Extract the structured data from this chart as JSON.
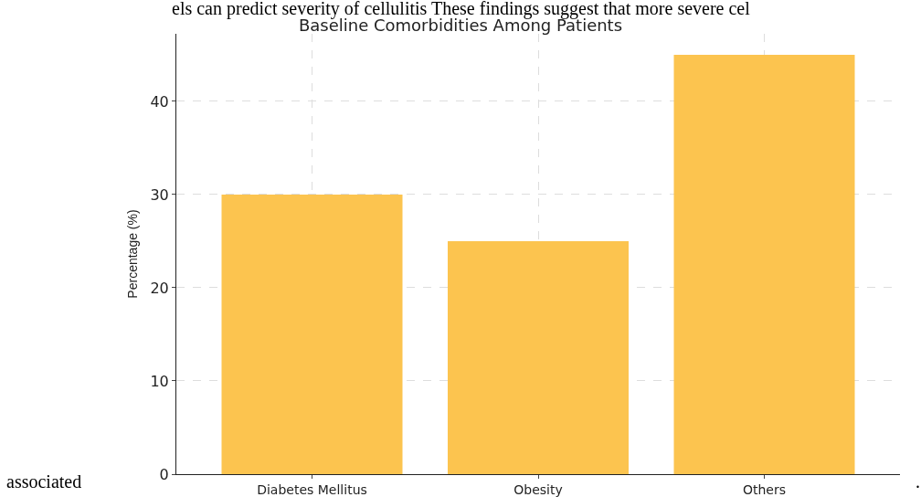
{
  "chart_data": {
    "type": "bar",
    "title": "Baseline Comorbidities Among Patients",
    "ylabel": "Percentage (%)",
    "categories": [
      "Diabetes Mellitus",
      "Obesity",
      "Others"
    ],
    "values": [
      30,
      25,
      45
    ],
    "color": "#fcc44f",
    "ylim": [
      0,
      47.25
    ],
    "yticks": [
      0,
      10,
      20,
      30,
      40
    ],
    "grid": true,
    "annotations": [
      "els can predict severity of cellulitis These findings suggest that more severe cel",
      "associated",
      "."
    ]
  }
}
